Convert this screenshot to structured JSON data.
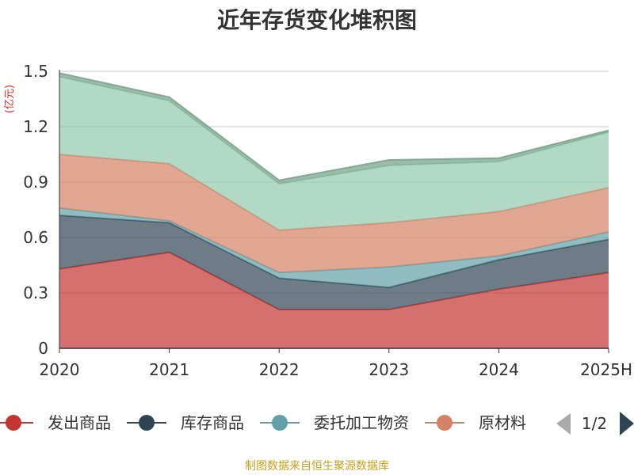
{
  "chart_data": {
    "type": "area",
    "stacked": true,
    "title": "近年存货变化堆积图",
    "ylabel": "(亿元)",
    "xlabel": "",
    "categories": [
      "2020",
      "2021",
      "2022",
      "2023",
      "2024",
      "2025H"
    ],
    "ylim": [
      0,
      1.5
    ],
    "yticks": [
      "0",
      "0.3",
      "0.6",
      "0.9",
      "1.2",
      "1.5"
    ],
    "grid": true,
    "series": [
      {
        "name": "发出商品",
        "color": "#c23531",
        "values": [
          0.43,
          0.52,
          0.21,
          0.21,
          0.32,
          0.41
        ]
      },
      {
        "name": "库存商品",
        "color": "#2f4554",
        "values": [
          0.29,
          0.16,
          0.17,
          0.12,
          0.16,
          0.18
        ]
      },
      {
        "name": "委托加工物资",
        "color": "#61a0a8",
        "values": [
          0.04,
          0.01,
          0.03,
          0.11,
          0.02,
          0.04
        ]
      },
      {
        "name": "原材料",
        "color": "#d48265",
        "values": [
          0.29,
          0.31,
          0.23,
          0.24,
          0.24,
          0.24
        ]
      },
      {
        "name": "",
        "color": "#91c7ae",
        "values": [
          0.42,
          0.34,
          0.25,
          0.31,
          0.27,
          0.3
        ]
      },
      {
        "name": "",
        "color": "#749f83",
        "values": [
          0.02,
          0.02,
          0.02,
          0.03,
          0.02,
          0.01
        ]
      }
    ],
    "legend": {
      "position": "bottom",
      "visible_items": [
        "发出商品",
        "库存商品",
        "委托加工物资",
        "原材料"
      ],
      "page_indicator": "1/2"
    }
  },
  "footer": {
    "source": "制图数据来自恒生聚源数据库"
  }
}
